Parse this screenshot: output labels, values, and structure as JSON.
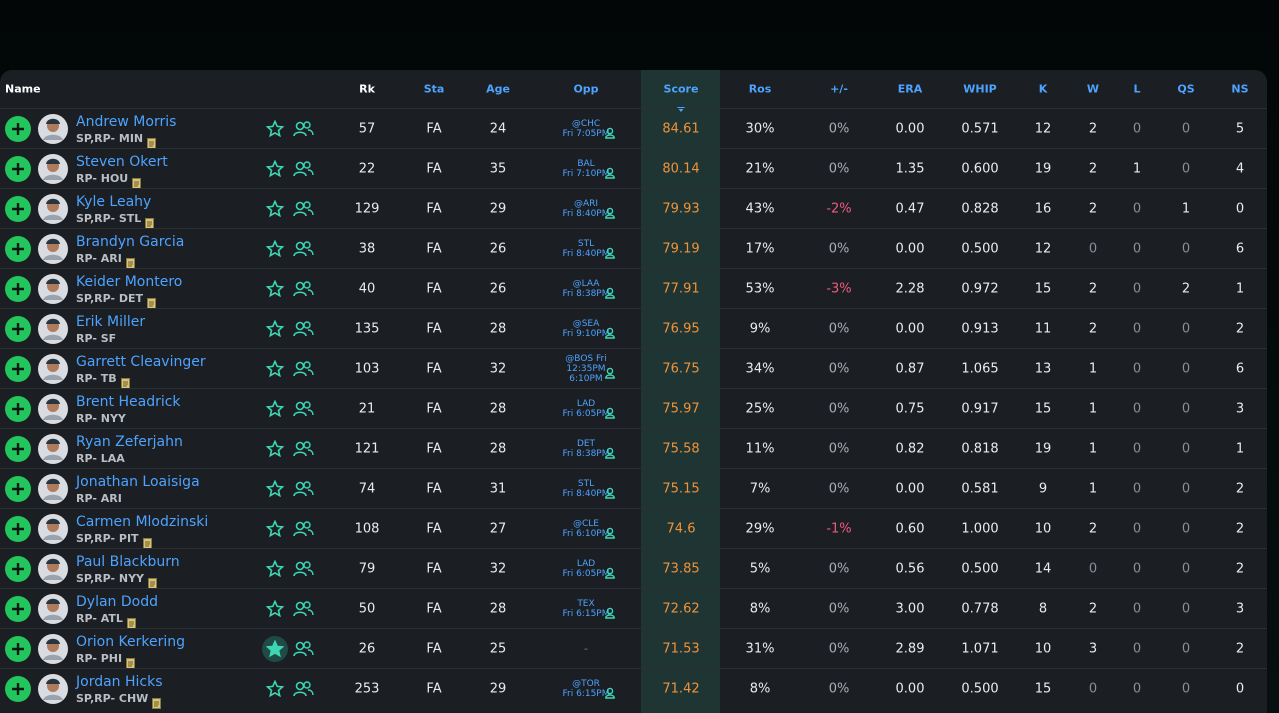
{
  "table": {
    "header": [
      "Name",
      "Rk",
      "Sta",
      "Age",
      "Opp",
      "Score",
      "Ros",
      "+/-",
      "ERA",
      "WHIP",
      "K",
      "W",
      "L",
      "QS",
      "NS"
    ],
    "rows": [
      {
        "name": "Andrew Morris",
        "info": "SP,RP- MIN",
        "note": true,
        "starred": false,
        "rk": "57",
        "sta": "FA",
        "age": "24",
        "opp": [
          "@CHC",
          "Fri 7:05PM"
        ],
        "score": "84.61",
        "ros": "30%",
        "diff": "0%",
        "era": "0.00",
        "whip": "0.571",
        "k": "12",
        "w": "2",
        "l": "0",
        "qs": "0",
        "ns": "5"
      },
      {
        "name": "Steven Okert",
        "info": "RP- HOU",
        "note": true,
        "starred": false,
        "rk": "22",
        "sta": "FA",
        "age": "35",
        "opp": [
          "BAL",
          "Fri 7:10PM"
        ],
        "score": "80.14",
        "ros": "21%",
        "diff": "0%",
        "era": "1.35",
        "whip": "0.600",
        "k": "19",
        "w": "2",
        "l": "1",
        "qs": "0",
        "ns": "4"
      },
      {
        "name": "Kyle Leahy",
        "info": "SP,RP- STL",
        "note": true,
        "starred": false,
        "rk": "129",
        "sta": "FA",
        "age": "29",
        "opp": [
          "@ARI",
          "Fri 8:40PM"
        ],
        "score": "79.93",
        "ros": "43%",
        "diff": "-2%",
        "era": "0.47",
        "whip": "0.828",
        "k": "16",
        "w": "2",
        "l": "0",
        "qs": "1",
        "ns": "0"
      },
      {
        "name": "Brandyn Garcia",
        "info": "RP- ARI",
        "note": true,
        "starred": false,
        "rk": "38",
        "sta": "FA",
        "age": "26",
        "opp": [
          "STL",
          "Fri 8:40PM"
        ],
        "score": "79.19",
        "ros": "17%",
        "diff": "0%",
        "era": "0.00",
        "whip": "0.500",
        "k": "12",
        "w": "0",
        "l": "0",
        "qs": "0",
        "ns": "6"
      },
      {
        "name": "Keider Montero",
        "info": "SP,RP- DET",
        "note": true,
        "starred": false,
        "rk": "40",
        "sta": "FA",
        "age": "26",
        "opp": [
          "@LAA",
          "Fri 8:38PM"
        ],
        "score": "77.91",
        "ros": "53%",
        "diff": "-3%",
        "era": "2.28",
        "whip": "0.972",
        "k": "15",
        "w": "2",
        "l": "0",
        "qs": "2",
        "ns": "1"
      },
      {
        "name": "Erik Miller",
        "info": "RP- SF",
        "note": false,
        "starred": false,
        "rk": "135",
        "sta": "FA",
        "age": "28",
        "opp": [
          "@SEA",
          "Fri 9:10PM"
        ],
        "score": "76.95",
        "ros": "9%",
        "diff": "0%",
        "era": "0.00",
        "whip": "0.913",
        "k": "11",
        "w": "2",
        "l": "0",
        "qs": "0",
        "ns": "2"
      },
      {
        "name": "Garrett Cleavinger",
        "info": "RP- TB",
        "note": true,
        "starred": false,
        "rk": "103",
        "sta": "FA",
        "age": "32",
        "opp": [
          "@BOS Fri",
          "12:35PM",
          "6:10PM"
        ],
        "score": "76.75",
        "ros": "34%",
        "diff": "0%",
        "era": "0.87",
        "whip": "1.065",
        "k": "13",
        "w": "1",
        "l": "0",
        "qs": "0",
        "ns": "6"
      },
      {
        "name": "Brent Headrick",
        "info": "RP- NYY",
        "note": false,
        "starred": false,
        "rk": "21",
        "sta": "FA",
        "age": "28",
        "opp": [
          "LAD",
          "Fri 6:05PM"
        ],
        "score": "75.97",
        "ros": "25%",
        "diff": "0%",
        "era": "0.75",
        "whip": "0.917",
        "k": "15",
        "w": "1",
        "l": "0",
        "qs": "0",
        "ns": "3"
      },
      {
        "name": "Ryan Zeferjahn",
        "info": "RP- LAA",
        "note": false,
        "starred": false,
        "rk": "121",
        "sta": "FA",
        "age": "28",
        "opp": [
          "DET",
          "Fri 8:38PM"
        ],
        "score": "75.58",
        "ros": "11%",
        "diff": "0%",
        "era": "0.82",
        "whip": "0.818",
        "k": "19",
        "w": "1",
        "l": "0",
        "qs": "0",
        "ns": "1"
      },
      {
        "name": "Jonathan Loaisiga",
        "info": "RP- ARI",
        "note": false,
        "starred": false,
        "rk": "74",
        "sta": "FA",
        "age": "31",
        "opp": [
          "STL",
          "Fri 8:40PM"
        ],
        "score": "75.15",
        "ros": "7%",
        "diff": "0%",
        "era": "0.00",
        "whip": "0.581",
        "k": "9",
        "w": "1",
        "l": "0",
        "qs": "0",
        "ns": "2"
      },
      {
        "name": "Carmen Mlodzinski",
        "info": "SP,RP- PIT",
        "note": true,
        "starred": false,
        "rk": "108",
        "sta": "FA",
        "age": "27",
        "opp": [
          "@CLE",
          "Fri 6:10PM"
        ],
        "score": "74.6",
        "ros": "29%",
        "diff": "-1%",
        "era": "0.60",
        "whip": "1.000",
        "k": "10",
        "w": "2",
        "l": "0",
        "qs": "0",
        "ns": "2"
      },
      {
        "name": "Paul Blackburn",
        "info": "SP,RP- NYY",
        "note": true,
        "starred": false,
        "rk": "79",
        "sta": "FA",
        "age": "32",
        "opp": [
          "LAD",
          "Fri 6:05PM"
        ],
        "score": "73.85",
        "ros": "5%",
        "diff": "0%",
        "era": "0.56",
        "whip": "0.500",
        "k": "14",
        "w": "0",
        "l": "0",
        "qs": "0",
        "ns": "2"
      },
      {
        "name": "Dylan Dodd",
        "info": "RP- ATL",
        "note": true,
        "starred": false,
        "rk": "50",
        "sta": "FA",
        "age": "28",
        "opp": [
          "TEX",
          "Fri 6:15PM"
        ],
        "score": "72.62",
        "ros": "8%",
        "diff": "0%",
        "era": "3.00",
        "whip": "0.778",
        "k": "8",
        "w": "2",
        "l": "0",
        "qs": "0",
        "ns": "3"
      },
      {
        "name": "Orion Kerkering",
        "info": "RP- PHI",
        "note": true,
        "starred": true,
        "rk": "26",
        "sta": "FA",
        "age": "25",
        "opp": [
          "-"
        ],
        "score": "71.53",
        "ros": "31%",
        "diff": "0%",
        "era": "2.89",
        "whip": "1.071",
        "k": "10",
        "w": "3",
        "l": "0",
        "qs": "0",
        "ns": "2"
      },
      {
        "name": "Jordan Hicks",
        "info": "SP,RP- CHW",
        "note": true,
        "starred": false,
        "rk": "253",
        "sta": "FA",
        "age": "29",
        "opp": [
          "@TOR",
          "Fri 6:15PM"
        ],
        "score": "71.42",
        "ros": "8%",
        "diff": "0%",
        "era": "0.00",
        "whip": "0.500",
        "k": "15",
        "w": "0",
        "l": "0",
        "qs": "0",
        "ns": "0"
      }
    ]
  }
}
